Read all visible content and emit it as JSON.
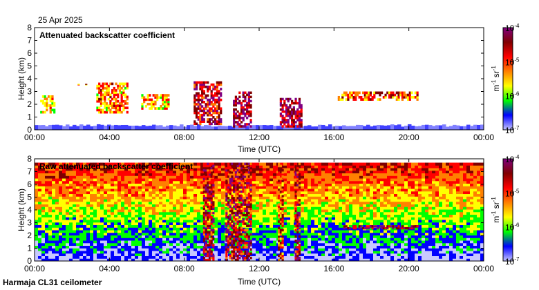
{
  "date": "25 Apr 2025",
  "footer": "Harmaja CL31 ceilometer",
  "chart_data": [
    {
      "type": "heatmap",
      "title": "Attenuated backscatter coefficient",
      "xlabel": "Time (UTC)",
      "ylabel": "Height (km)",
      "xlim": [
        0,
        24
      ],
      "ylim": [
        0,
        8
      ],
      "xticks": [
        "00:00",
        "04:00",
        "08:00",
        "12:00",
        "16:00",
        "20:00",
        "00:00"
      ],
      "yticks": [
        "0",
        "1",
        "2",
        "3",
        "4",
        "5",
        "6",
        "7",
        "8"
      ],
      "colorbar": {
        "scale": "log",
        "range": [
          1e-07,
          0.0001
        ],
        "ticks": [
          {
            "base": "10",
            "exp": "-4",
            "value": 0.0001
          },
          {
            "base": "10",
            "exp": "-5",
            "value": 1e-05
          },
          {
            "base": "10",
            "exp": "-6",
            "value": 1e-06
          },
          {
            "base": "10",
            "exp": "-7",
            "value": 1e-07
          }
        ],
        "unit_parts": [
          "m",
          "-1",
          " sr",
          "-1"
        ]
      },
      "colors": [
        "#c8c8ff",
        "#0000ff",
        "#00ff00",
        "#ffff00",
        "#ff8000",
        "#ff0000",
        "#800000",
        "#800080"
      ],
      "features": [
        {
          "kind": "surface_layer",
          "t_start": 0,
          "t_end": 24,
          "height_km": 0.4,
          "value": 3e-07
        },
        {
          "kind": "cloud",
          "t_start": 0.3,
          "t_end": 1.1,
          "h_low": 1.3,
          "h_high": 2.7,
          "value": 2e-06
        },
        {
          "kind": "cloud",
          "t_start": 2.3,
          "t_end": 2.8,
          "h_low": 3.5,
          "h_high": 3.6,
          "value": 8e-06
        },
        {
          "kind": "cloud",
          "t_start": 3.3,
          "t_end": 5.0,
          "h_low": 1.3,
          "h_high": 3.7,
          "value": 5e-06
        },
        {
          "kind": "cloud",
          "t_start": 5.7,
          "t_end": 7.2,
          "h_low": 1.6,
          "h_high": 2.8,
          "value": 4e-06
        },
        {
          "kind": "cloud",
          "t_start": 8.5,
          "t_end": 10.0,
          "h_low": 0.4,
          "h_high": 3.8,
          "value": 2e-05
        },
        {
          "kind": "cloud",
          "t_start": 10.6,
          "t_end": 11.6,
          "h_low": 0.2,
          "h_high": 3.0,
          "value": 3e-05
        },
        {
          "kind": "cloud",
          "t_start": 13.1,
          "t_end": 14.3,
          "h_low": 0.2,
          "h_high": 2.5,
          "value": 3e-05
        },
        {
          "kind": "cloud",
          "t_start": 16.2,
          "t_end": 20.5,
          "h_low": 2.3,
          "h_high": 3.0,
          "value": 8e-06
        }
      ]
    },
    {
      "type": "heatmap",
      "title": "Raw attenuated backscatter coefficient",
      "xlabel": "Time (UTC)",
      "ylabel": "Height (km)",
      "xlim": [
        0,
        24
      ],
      "ylim": [
        0,
        8
      ],
      "xticks": [
        "00:00",
        "04:00",
        "08:00",
        "12:00",
        "16:00",
        "20:00",
        "00:00"
      ],
      "yticks": [
        "0",
        "1",
        "2",
        "3",
        "4",
        "5",
        "6",
        "7",
        "8"
      ],
      "colorbar": {
        "scale": "log",
        "range": [
          1e-07,
          0.0001
        ],
        "ticks": [
          {
            "base": "10",
            "exp": "-4",
            "value": 0.0001
          },
          {
            "base": "10",
            "exp": "-5",
            "value": 1e-05
          },
          {
            "base": "10",
            "exp": "-6",
            "value": 1e-06
          },
          {
            "base": "10",
            "exp": "-7",
            "value": 1e-07
          }
        ],
        "unit_parts": [
          "m",
          "-1",
          " sr",
          "-1"
        ]
      },
      "colors": [
        "#c8c8ff",
        "#0000ff",
        "#00ff00",
        "#ffff00",
        "#ff8000",
        "#ff0000",
        "#800000",
        "#800080"
      ],
      "features": [
        {
          "kind": "noise_field",
          "t_start": 0,
          "t_end": 24,
          "h_low": 0,
          "h_high": 7.7,
          "value": 2e-06
        },
        {
          "kind": "column",
          "t_start": 9.0,
          "t_end": 9.6,
          "h_low": 0,
          "h_high": 7.7,
          "value": 2e-05
        },
        {
          "kind": "column",
          "t_start": 10.2,
          "t_end": 11.6,
          "h_low": 0,
          "h_high": 7.7,
          "value": 2e-05
        },
        {
          "kind": "column",
          "t_start": 13.0,
          "t_end": 13.3,
          "h_low": 0,
          "h_high": 7.7,
          "value": 1e-05
        },
        {
          "kind": "column",
          "t_start": 13.9,
          "t_end": 14.2,
          "h_low": 0,
          "h_high": 7.7,
          "value": 2e-05
        },
        {
          "kind": "cloud",
          "t_start": 16.5,
          "t_end": 20.5,
          "h_low": 2.5,
          "h_high": 2.8,
          "value": 3e-05
        }
      ]
    }
  ]
}
